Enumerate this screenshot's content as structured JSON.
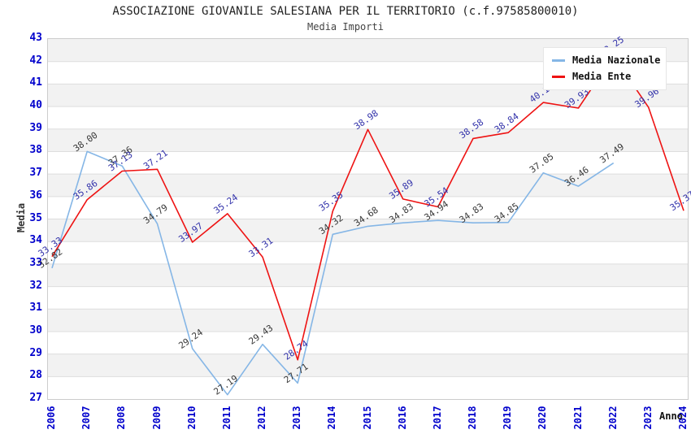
{
  "header": {
    "title": "ASSOCIAZIONE GIOVANILE SALESIANA PER IL TERRITORIO (c.f.97585800010)",
    "subtitle": "Media Importi"
  },
  "chart_data": {
    "type": "line",
    "title": "ASSOCIAZIONE GIOVANILE SALESIANA PER IL TERRITORIO (c.f.97585800010)",
    "subtitle": "Media Importi",
    "xlabel": "Anno",
    "ylabel": "Media",
    "ylim": [
      27,
      43
    ],
    "yticks": [
      27,
      28,
      29,
      30,
      31,
      32,
      33,
      34,
      35,
      36,
      37,
      38,
      39,
      40,
      41,
      42,
      43
    ],
    "categories": [
      "2006",
      "2007",
      "2008",
      "2009",
      "2010",
      "2011",
      "2012",
      "2013",
      "2014",
      "2015",
      "2016",
      "2017",
      "2018",
      "2019",
      "2020",
      "2021",
      "2022",
      "2023",
      "2024"
    ],
    "series": [
      {
        "name": "Media Nazionale",
        "color": "#85b6e6",
        "label_color": "#383838",
        "values": [
          32.82,
          38.0,
          37.36,
          34.79,
          29.24,
          27.19,
          29.43,
          27.71,
          34.32,
          34.68,
          34.83,
          34.94,
          34.83,
          34.85,
          37.05,
          36.46,
          37.49,
          null,
          null
        ]
      },
      {
        "name": "Media Ente",
        "color": "#ee1313",
        "label_color": "#3232aa",
        "values": [
          33.33,
          35.86,
          37.13,
          37.21,
          33.97,
          35.24,
          33.31,
          28.74,
          35.35,
          38.98,
          35.89,
          35.54,
          38.58,
          38.84,
          40.18,
          39.93,
          42.25,
          39.96,
          35.37
        ]
      }
    ],
    "legend_position": "top-right",
    "grid": "horizontal-bands-alternating",
    "style": {
      "band_color": "#f2f2f2",
      "gridline_color": "#dddddd",
      "plot_border_color": "#cccccc",
      "tick_label_color": "#0000cc",
      "value_label_rotation_deg": -35
    }
  }
}
